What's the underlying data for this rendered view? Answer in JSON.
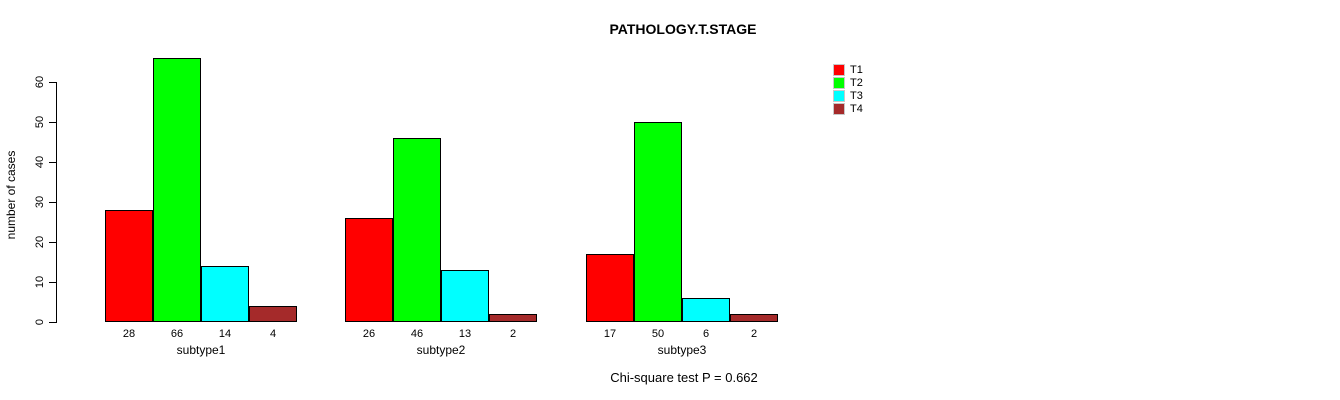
{
  "title": "PATHOLOGY.T.STAGE",
  "annotation": "Chi-square test P = 0.662",
  "chart_data": {
    "type": "bar",
    "title": "PATHOLOGY.T.STAGE",
    "xlabel": "",
    "ylabel": "number of cases",
    "categories": [
      "subtype1",
      "subtype2",
      "subtype3"
    ],
    "series": [
      {
        "name": "T1",
        "color": "#ff0000",
        "values": [
          28,
          26,
          17
        ]
      },
      {
        "name": "T2",
        "color": "#00ff00",
        "values": [
          66,
          46,
          50
        ]
      },
      {
        "name": "T3",
        "color": "#00ffff",
        "values": [
          14,
          13,
          6
        ]
      },
      {
        "name": "T4",
        "color": "#a52a2a",
        "values": [
          4,
          2,
          2
        ]
      }
    ],
    "yticks": [
      0,
      10,
      20,
      30,
      40,
      50,
      60
    ],
    "ylim": [
      0,
      60
    ],
    "grid": false,
    "bar_value_labels_shown": true,
    "legend_position": "top-right",
    "legend_entries": [
      "T1",
      "T2",
      "T3",
      "T4"
    ],
    "annotation": "Chi-square test P = 0.662",
    "background_color": "#ffffff",
    "text_color": "#000000"
  }
}
